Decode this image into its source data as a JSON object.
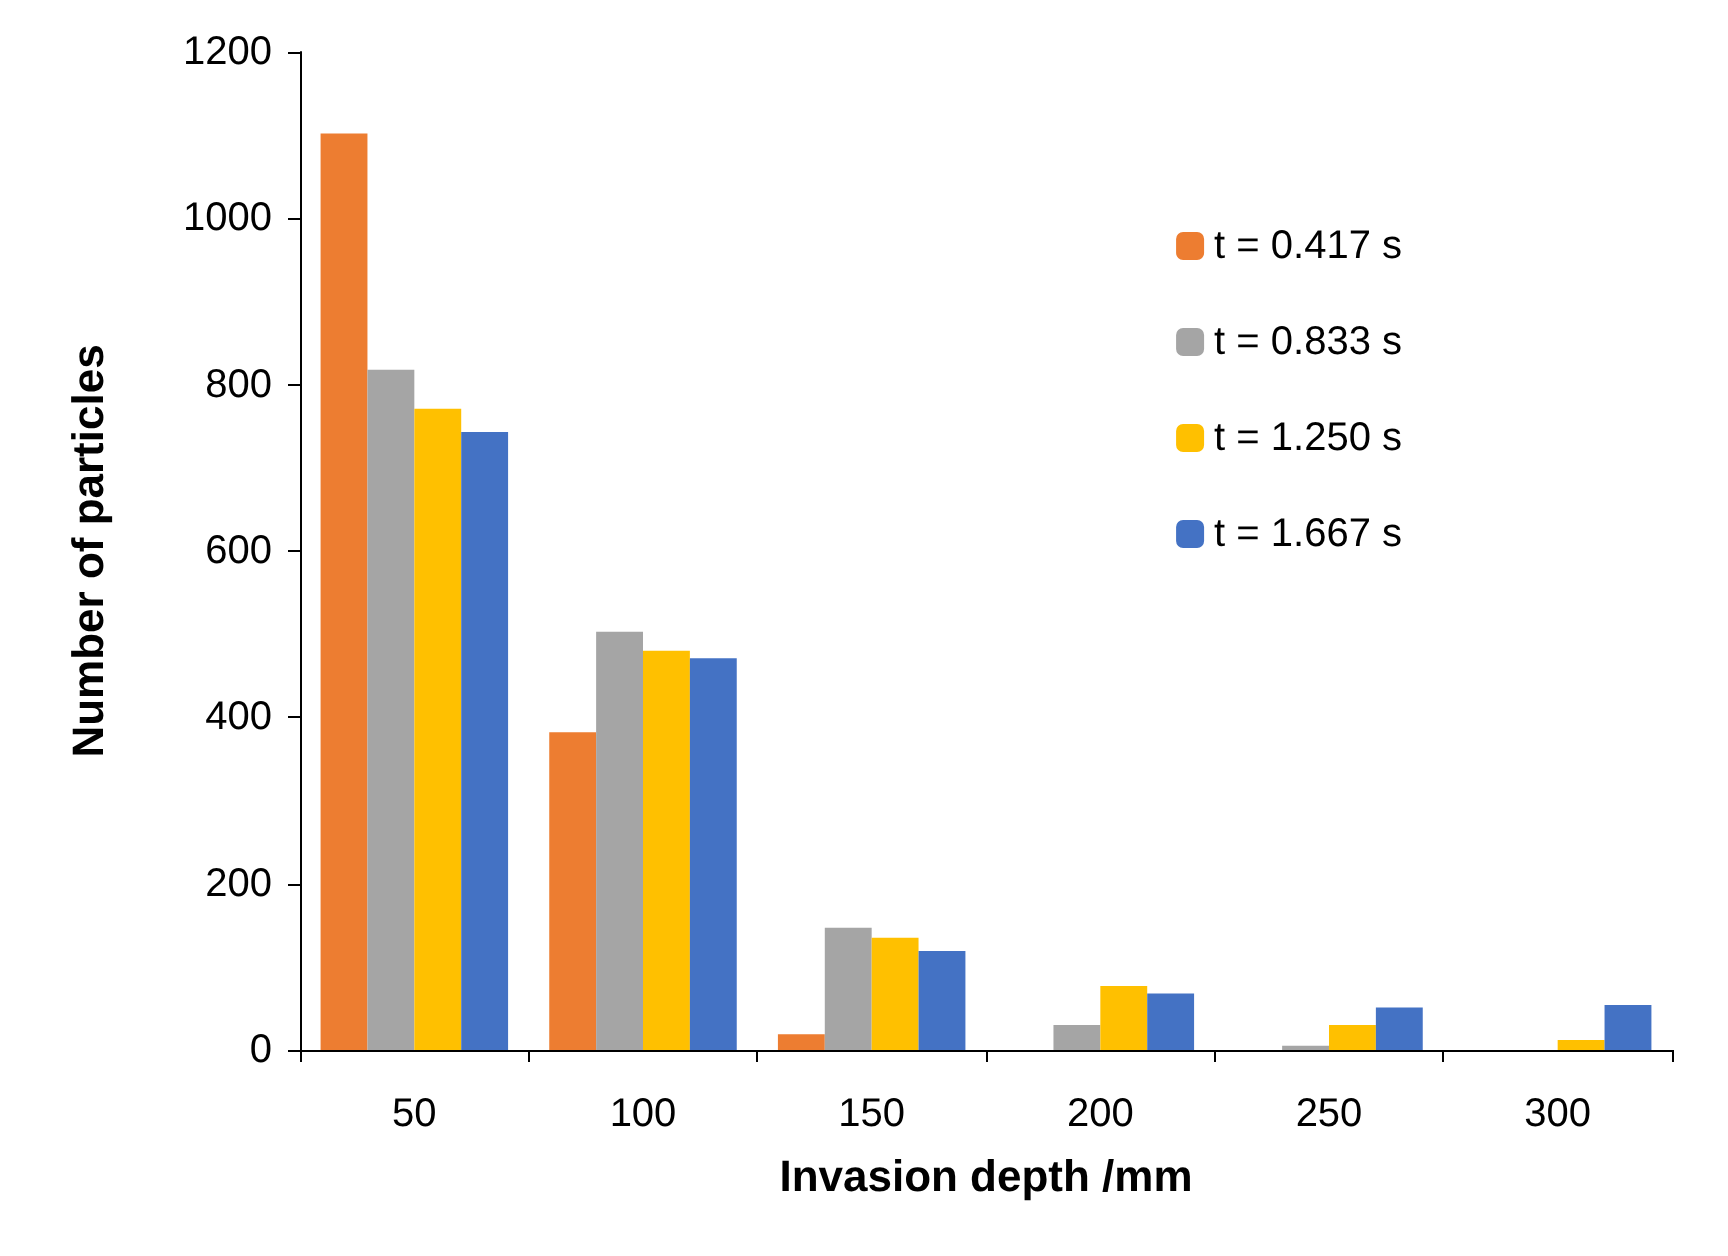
{
  "chart_data": {
    "type": "bar",
    "xlabel": "Invasion depth /mm",
    "ylabel": "Number of particles",
    "categories": [
      "50",
      "100",
      "150",
      "200",
      "250",
      "300"
    ],
    "series": [
      {
        "name": "t = 0.417 s",
        "color": "#ed7d31",
        "values": [
          1102,
          382,
          19,
          0,
          0,
          0
        ]
      },
      {
        "name": "t = 0.833 s",
        "color": "#a5a5a5",
        "values": [
          818,
          503,
          147,
          30,
          5,
          0
        ]
      },
      {
        "name": "t = 1.250 s",
        "color": "#ffc000",
        "values": [
          771,
          480,
          135,
          77,
          30,
          12
        ]
      },
      {
        "name": "t = 1.667 s",
        "color": "#4472c4",
        "values": [
          743,
          471,
          119,
          68,
          51,
          54
        ]
      }
    ],
    "ylim": [
      0,
      1200
    ],
    "yticks": [
      0,
      200,
      400,
      600,
      800,
      1000,
      1200
    ],
    "grid": false,
    "legend": "top right"
  }
}
